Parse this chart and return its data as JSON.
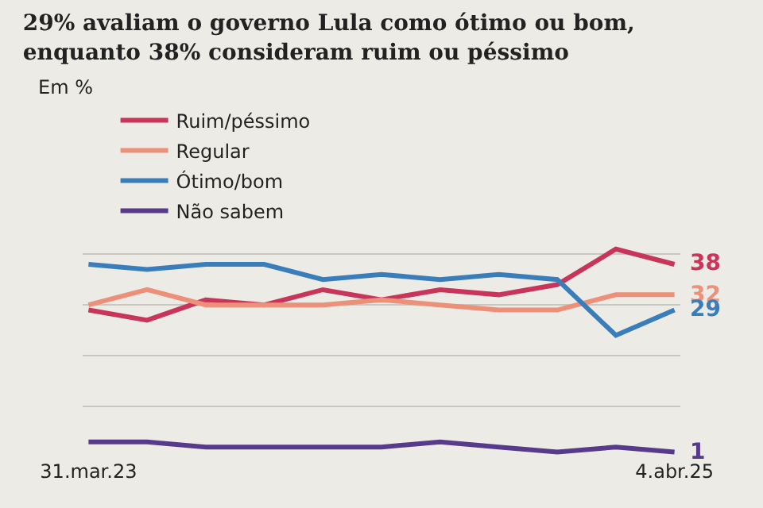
{
  "chart_data": {
    "type": "line",
    "title": "29% avaliam o governo Lula como ótimo ou bom,\nenquanto 38% consideram ruim ou péssimo",
    "annotations": [
      "Em %"
    ],
    "categories": [
      "31.mar.23",
      null,
      null,
      null,
      null,
      null,
      null,
      null,
      null,
      null,
      "4.abr.25"
    ],
    "series": [
      {
        "name": "Ruim/péssimo",
        "color": "#c8345a",
        "values": [
          29,
          27,
          31,
          30,
          33,
          31,
          33,
          32,
          34,
          41,
          38
        ],
        "value_labels": [
          null,
          null,
          null,
          null,
          null,
          null,
          null,
          null,
          null,
          null,
          "38"
        ]
      },
      {
        "name": "Regular",
        "color": "#ec907a",
        "values": [
          30,
          33,
          30,
          30,
          30,
          31,
          30,
          29,
          29,
          32,
          32
        ],
        "value_labels": [
          null,
          null,
          null,
          null,
          null,
          null,
          null,
          null,
          null,
          null,
          "32"
        ]
      },
      {
        "name": "Ótimo/bom",
        "color": "#3a7dbb",
        "values": [
          38,
          37,
          38,
          38,
          35,
          36,
          35,
          36,
          35,
          24,
          29
        ],
        "value_labels": [
          null,
          null,
          null,
          null,
          null,
          null,
          null,
          null,
          null,
          null,
          "29"
        ]
      },
      {
        "name": "Não sabem",
        "color": "#573a8c",
        "values": [
          3,
          3,
          2,
          2,
          2,
          2,
          3,
          2,
          1,
          2,
          1
        ],
        "value_labels": [
          null,
          null,
          null,
          null,
          null,
          null,
          null,
          null,
          null,
          null,
          "1"
        ]
      }
    ],
    "grid": "y",
    "legend": "top left",
    "marker": "none",
    "line_style": "solid"
  }
}
